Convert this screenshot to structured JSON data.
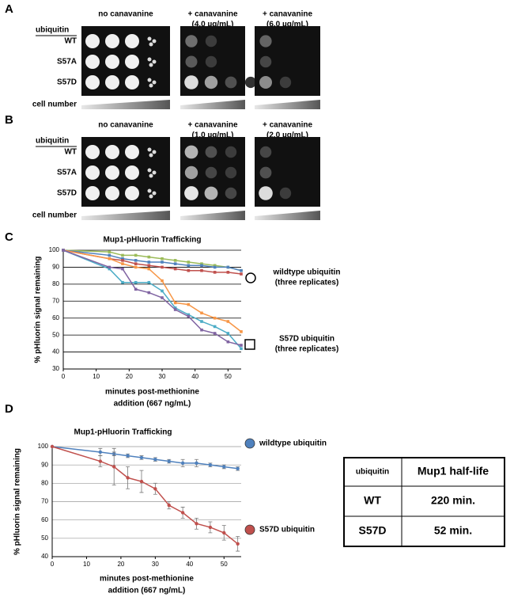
{
  "panels": [
    {
      "label": "A",
      "header": "ubiquitin",
      "conditions": [
        [
          "no canavanine"
        ],
        [
          "+ canavanine",
          "(4.0 µg/mL)"
        ],
        [
          "+ canavanine",
          "(6.0 µg/mL)"
        ]
      ],
      "strains": [
        "WT",
        "S57A",
        "S57D"
      ],
      "gradient_label": "cell number"
    },
    {
      "label": "B",
      "header": "ubiquitin",
      "conditions": [
        [
          "no canavanine"
        ],
        [
          "+ canavanine",
          "(1.0 µg/mL)"
        ],
        [
          "+ canavanine",
          "(2.0 µg/mL)"
        ]
      ],
      "strains": [
        "WT",
        "S57A",
        "S57D"
      ],
      "gradient_label": "cell number"
    }
  ],
  "chart_data": [
    {
      "type": "line",
      "panel_label": "C",
      "title": "Mup1-pHluorin Trafficking",
      "ylabel": "% pHluorin signal remaining",
      "xlabel": [
        "minutes post-methionine",
        "addition (667 ng/mL)"
      ],
      "x": [
        0,
        14,
        18,
        22,
        26,
        30,
        34,
        38,
        42,
        46,
        50,
        54
      ],
      "xlim": [
        0,
        54
      ],
      "xticks": [
        0,
        10,
        20,
        30,
        40,
        50
      ],
      "ylim": [
        30,
        100
      ],
      "yticks": [
        30,
        40,
        50,
        60,
        70,
        80,
        90,
        100
      ],
      "grid": true,
      "series": [
        {
          "color": "#9bbb59",
          "values": [
            100,
            99,
            97,
            97,
            96,
            95,
            94,
            93,
            92,
            91,
            90,
            88
          ]
        },
        {
          "color": "#4f81bd",
          "values": [
            100,
            97,
            95,
            94,
            93,
            93,
            92,
            91,
            91,
            90,
            90,
            88
          ]
        },
        {
          "color": "#c0504d",
          "values": [
            100,
            95,
            94,
            92,
            91,
            90,
            89,
            88,
            88,
            87,
            87,
            86
          ]
        },
        {
          "color": "#f79646",
          "values": [
            100,
            95,
            92,
            90,
            89,
            82,
            69,
            68,
            63,
            60,
            58,
            52
          ]
        },
        {
          "color": "#4bacc6",
          "values": [
            100,
            89,
            81,
            81,
            81,
            76,
            66,
            62,
            58,
            55,
            51,
            42
          ]
        },
        {
          "color": "#8064a2",
          "values": [
            100,
            90,
            89,
            77,
            75,
            72,
            65,
            61,
            53,
            51,
            46,
            44
          ]
        }
      ],
      "annotations": [
        [
          "wildtype ubiquitin",
          "(three replicates)"
        ],
        [
          "S57D ubiquitin",
          "(three replicates)"
        ]
      ]
    },
    {
      "type": "errorline",
      "panel_label": "D",
      "title": "Mup1-pHluorin Trafficking",
      "ylabel": "% pHluorin signal remaining",
      "xlabel": [
        "minutes post-methionine",
        "addition (667 ng/mL)"
      ],
      "x": [
        0,
        14,
        18,
        22,
        26,
        30,
        34,
        38,
        42,
        46,
        50,
        54
      ],
      "xlim": [
        0,
        55
      ],
      "xticks": [
        0,
        10,
        20,
        30,
        40,
        50
      ],
      "ylim": [
        40,
        100
      ],
      "yticks": [
        40,
        50,
        60,
        70,
        80,
        90,
        100
      ],
      "grid": true,
      "series": [
        {
          "name": "wildtype ubiquitin",
          "color": "#4f81bd",
          "values": [
            100,
            97,
            96,
            95,
            94,
            93,
            92,
            91,
            91,
            90,
            89,
            88
          ],
          "errors": [
            0,
            2,
            1,
            1,
            1,
            1,
            1,
            2,
            2,
            1,
            1,
            1
          ]
        },
        {
          "name": "S57D ubiquitin",
          "color": "#c0504d",
          "values": [
            100,
            92,
            89,
            83,
            81,
            77,
            68,
            64,
            58,
            56,
            53,
            47
          ],
          "errors": [
            0,
            3,
            10,
            6,
            6,
            3,
            2,
            3,
            3,
            3,
            4,
            4
          ]
        }
      ]
    }
  ],
  "table": {
    "header": [
      "ubiquitin",
      "Mup1 half-life"
    ],
    "rows": [
      [
        "WT",
        "220 min."
      ],
      [
        "S57D",
        "52 min."
      ]
    ]
  }
}
